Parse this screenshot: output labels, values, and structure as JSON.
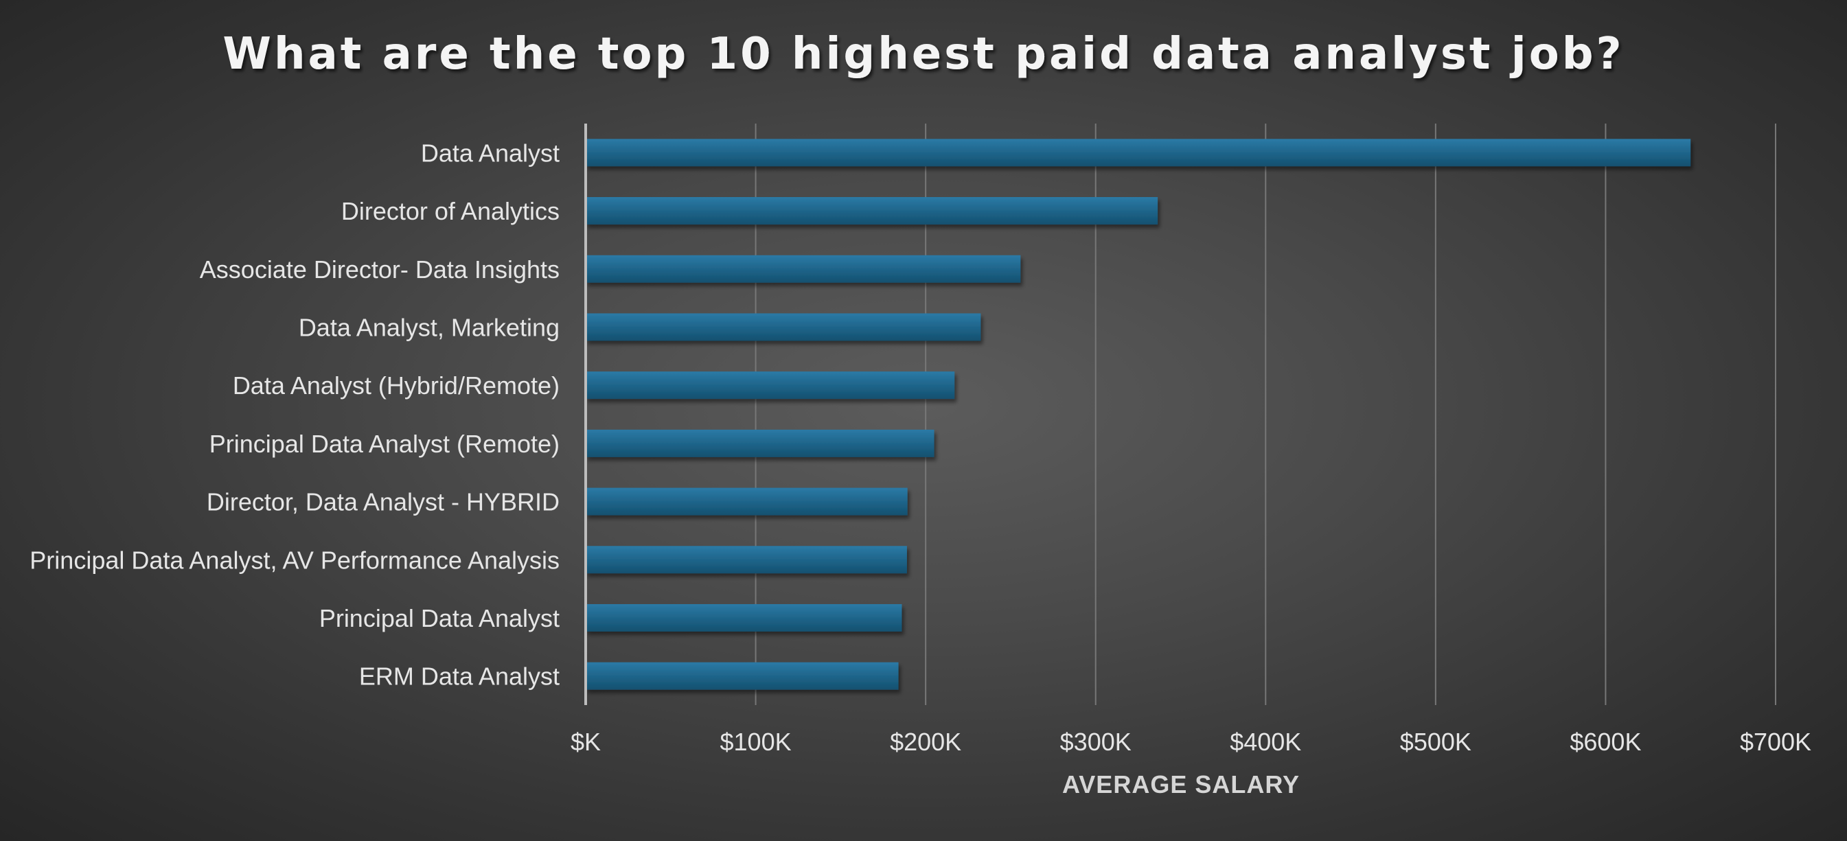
{
  "chart_data": {
    "type": "bar",
    "orientation": "horizontal",
    "title": "What are the top 10 highest paid data analyst job?",
    "xlabel": "AVERAGE SALARY",
    "ylabel": "",
    "categories": [
      "Data Analyst",
      "Director of Analytics",
      "Associate Director- Data Insights",
      "Data Analyst, Marketing",
      "Data Analyst (Hybrid/Remote)",
      "Principal Data Analyst (Remote)",
      "Director, Data Analyst - HYBRID",
      "Principal Data Analyst, AV Performance Analysis",
      "Principal Data Analyst",
      "ERM Data Analyst"
    ],
    "values": [
      650000,
      336500,
      255829,
      232423,
      217000,
      205000,
      189309,
      189000,
      186000,
      184000
    ],
    "xlim": [
      0,
      700000
    ],
    "xticks": [
      0,
      100000,
      200000,
      300000,
      400000,
      500000,
      600000,
      700000
    ],
    "xtick_labels": [
      "$K",
      "$100K",
      "$200K",
      "$300K",
      "$400K",
      "$500K",
      "$600K",
      "$700K"
    ],
    "grid": "vertical",
    "legend": "none",
    "colors": {
      "bar_top": "#2b7aa6",
      "bar_bottom": "#13506f",
      "gridline": "#777777",
      "axis_line": "#bdbdbd",
      "text": "#e6e6e6"
    }
  }
}
